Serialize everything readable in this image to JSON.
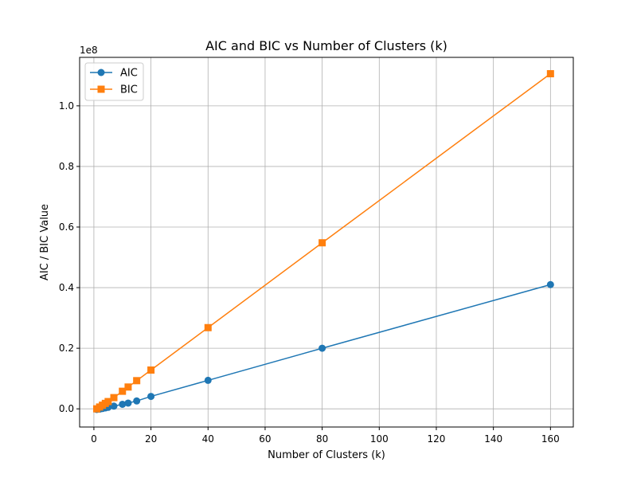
{
  "chart_data": {
    "type": "line",
    "title": "AIC and BIC vs Number of Clusters (k)",
    "xlabel": "Number of Clusters (k)",
    "ylabel": "AIC / BIC Value",
    "y_offset_label": "1e8",
    "xlim": [
      -5,
      168
    ],
    "ylim": [
      -0.06,
      1.16
    ],
    "y_scale_note_value": 100000000,
    "x_ticks": [
      0,
      20,
      40,
      60,
      80,
      100,
      120,
      140,
      160
    ],
    "x_tick_labels": [
      "0",
      "20",
      "40",
      "60",
      "80",
      "100",
      "120",
      "140",
      "160"
    ],
    "y_ticks": [
      0.0,
      0.2,
      0.4,
      0.6,
      0.8,
      1.0
    ],
    "y_tick_labels": [
      "0.0",
      "0.2",
      "0.4",
      "0.6",
      "0.8",
      "1.0"
    ],
    "grid": true,
    "legend_position": "top-left",
    "series": [
      {
        "name": "AIC",
        "color": "#1f77b4",
        "marker": "circle",
        "x": [
          1,
          2,
          3,
          4,
          5,
          7,
          10,
          12,
          15,
          20,
          40,
          80,
          160
        ],
        "y": [
          -0.002,
          -0.001,
          0.001,
          0.003,
          0.005,
          0.009,
          0.015,
          0.019,
          0.026,
          0.041,
          0.094,
          0.2,
          0.41
        ]
      },
      {
        "name": "BIC",
        "color": "#ff7f0e",
        "marker": "square",
        "x": [
          1,
          2,
          3,
          4,
          5,
          7,
          10,
          12,
          15,
          20,
          40,
          80,
          160
        ],
        "y": [
          0.0,
          0.006,
          0.012,
          0.018,
          0.024,
          0.037,
          0.058,
          0.072,
          0.093,
          0.128,
          0.268,
          0.548,
          1.106
        ]
      }
    ]
  }
}
